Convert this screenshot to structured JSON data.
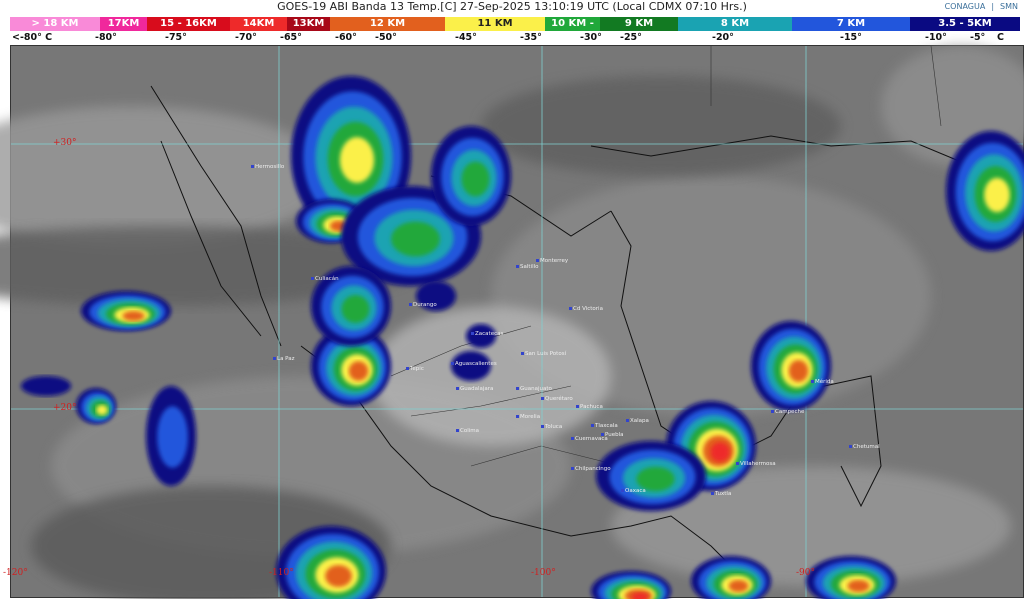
{
  "header": {
    "title": "GOES-19 ABI Banda 13 Temp.[C] 27-Sep-2025 13:10:19 UTC (Local CDMX  07:10 Hrs.)",
    "logos": [
      "CONAGUA",
      "SMN"
    ]
  },
  "scale": [
    {
      "label": "> 18 KM",
      "color": "#f98ad8"
    },
    {
      "label": "17KM",
      "color": "#f0289c"
    },
    {
      "label": "15 - 16KM",
      "color": "#d80c1c"
    },
    {
      "label": "14KM",
      "color": "#ee2a2a"
    },
    {
      "label": "13KM",
      "color": "#a80818"
    },
    {
      "label": "12 KM",
      "color": "#e2601e"
    },
    {
      "label": "11 KM",
      "color": "#fbf04a"
    },
    {
      "label": "10 KM -",
      "color": "#20a83a"
    },
    {
      "label": "9 KM",
      "color": "#127a22"
    },
    {
      "label": "8 KM",
      "color": "#1aa3b2"
    },
    {
      "label": "7 KM",
      "color": "#2256dc"
    },
    {
      "label": "3.5 - 5KM",
      "color": "#0a0a82"
    }
  ],
  "temps": [
    "<-80° C",
    "-80°",
    "-75°",
    "-70°",
    "-65°",
    "-60°",
    "-50°",
    "-45°",
    "-35°",
    "-30°",
    "-25°",
    "-20°",
    "-15°",
    "-10°",
    "-5°",
    "C"
  ],
  "map": {
    "lat_labels": [
      "+30°",
      "+20°"
    ],
    "lon_labels": [
      "-120°",
      "-110°",
      "-100°",
      "-90°"
    ],
    "cities": [
      "Hermosillo",
      "La Paz",
      "Culiacán",
      "Durango",
      "Monterrey",
      "Saltillo",
      "Cd Victoria",
      "Zacatecas",
      "San Luis Potosí",
      "Aguascalientes",
      "Tepic",
      "Guadalajara",
      "Guanajuato",
      "Querétaro",
      "Pachuca",
      "Morelia",
      "Colima",
      "Toluca",
      "Tlaxcala",
      "Puebla",
      "Cuernavaca",
      "Xalapa",
      "Chilpancingo",
      "Oaxaca",
      "Villahermosa",
      "Tuxtla",
      "Campeche",
      "Mérida",
      "Chetumal"
    ]
  }
}
